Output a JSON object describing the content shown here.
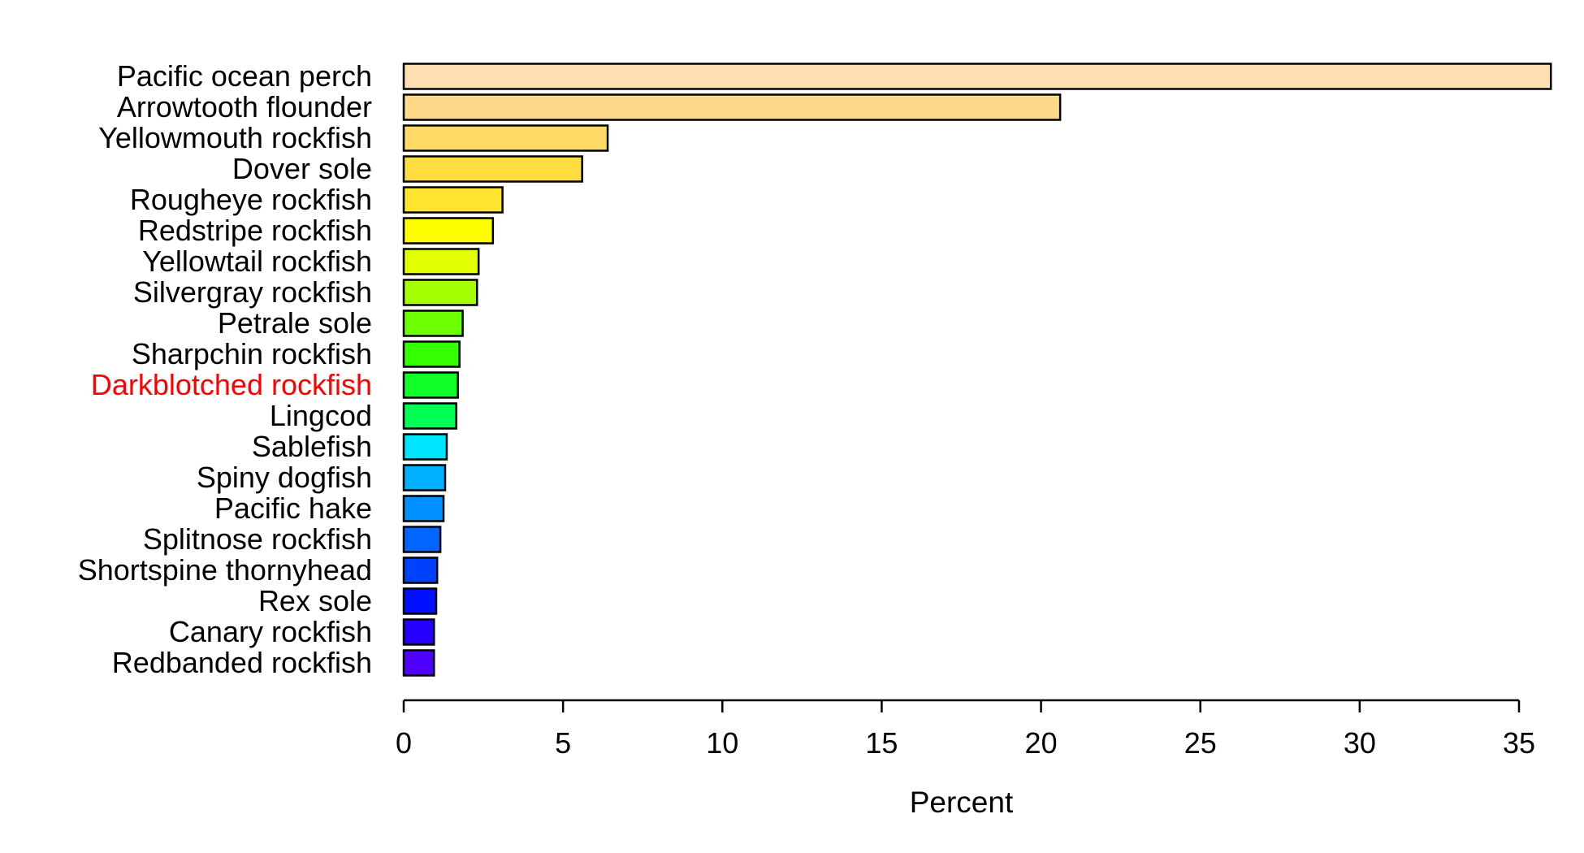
{
  "chart_data": {
    "type": "bar",
    "orientation": "horizontal",
    "title": "",
    "xlabel": "Percent",
    "ylabel": "",
    "xlim": [
      0,
      35
    ],
    "xticks": [
      0,
      5,
      10,
      15,
      20,
      25,
      30,
      35
    ],
    "grid": false,
    "highlight_color": "#ff0000",
    "categories": [
      "Pacific ocean perch",
      "Arrowtooth flounder",
      "Yellowmouth rockfish",
      "Dover sole",
      "Rougheye rockfish",
      "Redstripe rockfish",
      "Yellowtail rockfish",
      "Silvergray rockfish",
      "Petrale sole",
      "Sharpchin rockfish",
      "Darkblotched rockfish",
      "Lingcod",
      "Sablefish",
      "Spiny dogfish",
      "Pacific hake",
      "Splitnose rockfish",
      "Shortspine thornyhead",
      "Rex sole",
      "Canary rockfish",
      "Redbanded rockfish"
    ],
    "values": [
      36.0,
      20.6,
      6.4,
      5.6,
      3.1,
      2.8,
      2.35,
      2.3,
      1.85,
      1.75,
      1.7,
      1.65,
      1.35,
      1.3,
      1.25,
      1.15,
      1.05,
      1.02,
      0.95,
      0.95
    ],
    "highlighted": [
      "Darkblotched rockfish"
    ],
    "colors": [
      "#ffe0b3",
      "#ffd98a",
      "#ffd966",
      "#ffdd40",
      "#ffe52e",
      "#ffff00",
      "#e1ff00",
      "#a6ff00",
      "#6cff00",
      "#33ff00",
      "#10ff28",
      "#00ff55",
      "#00e5ff",
      "#00b0ff",
      "#0090ff",
      "#0066ff",
      "#0040ff",
      "#0010ff",
      "#2600ff",
      "#5000ff"
    ]
  }
}
